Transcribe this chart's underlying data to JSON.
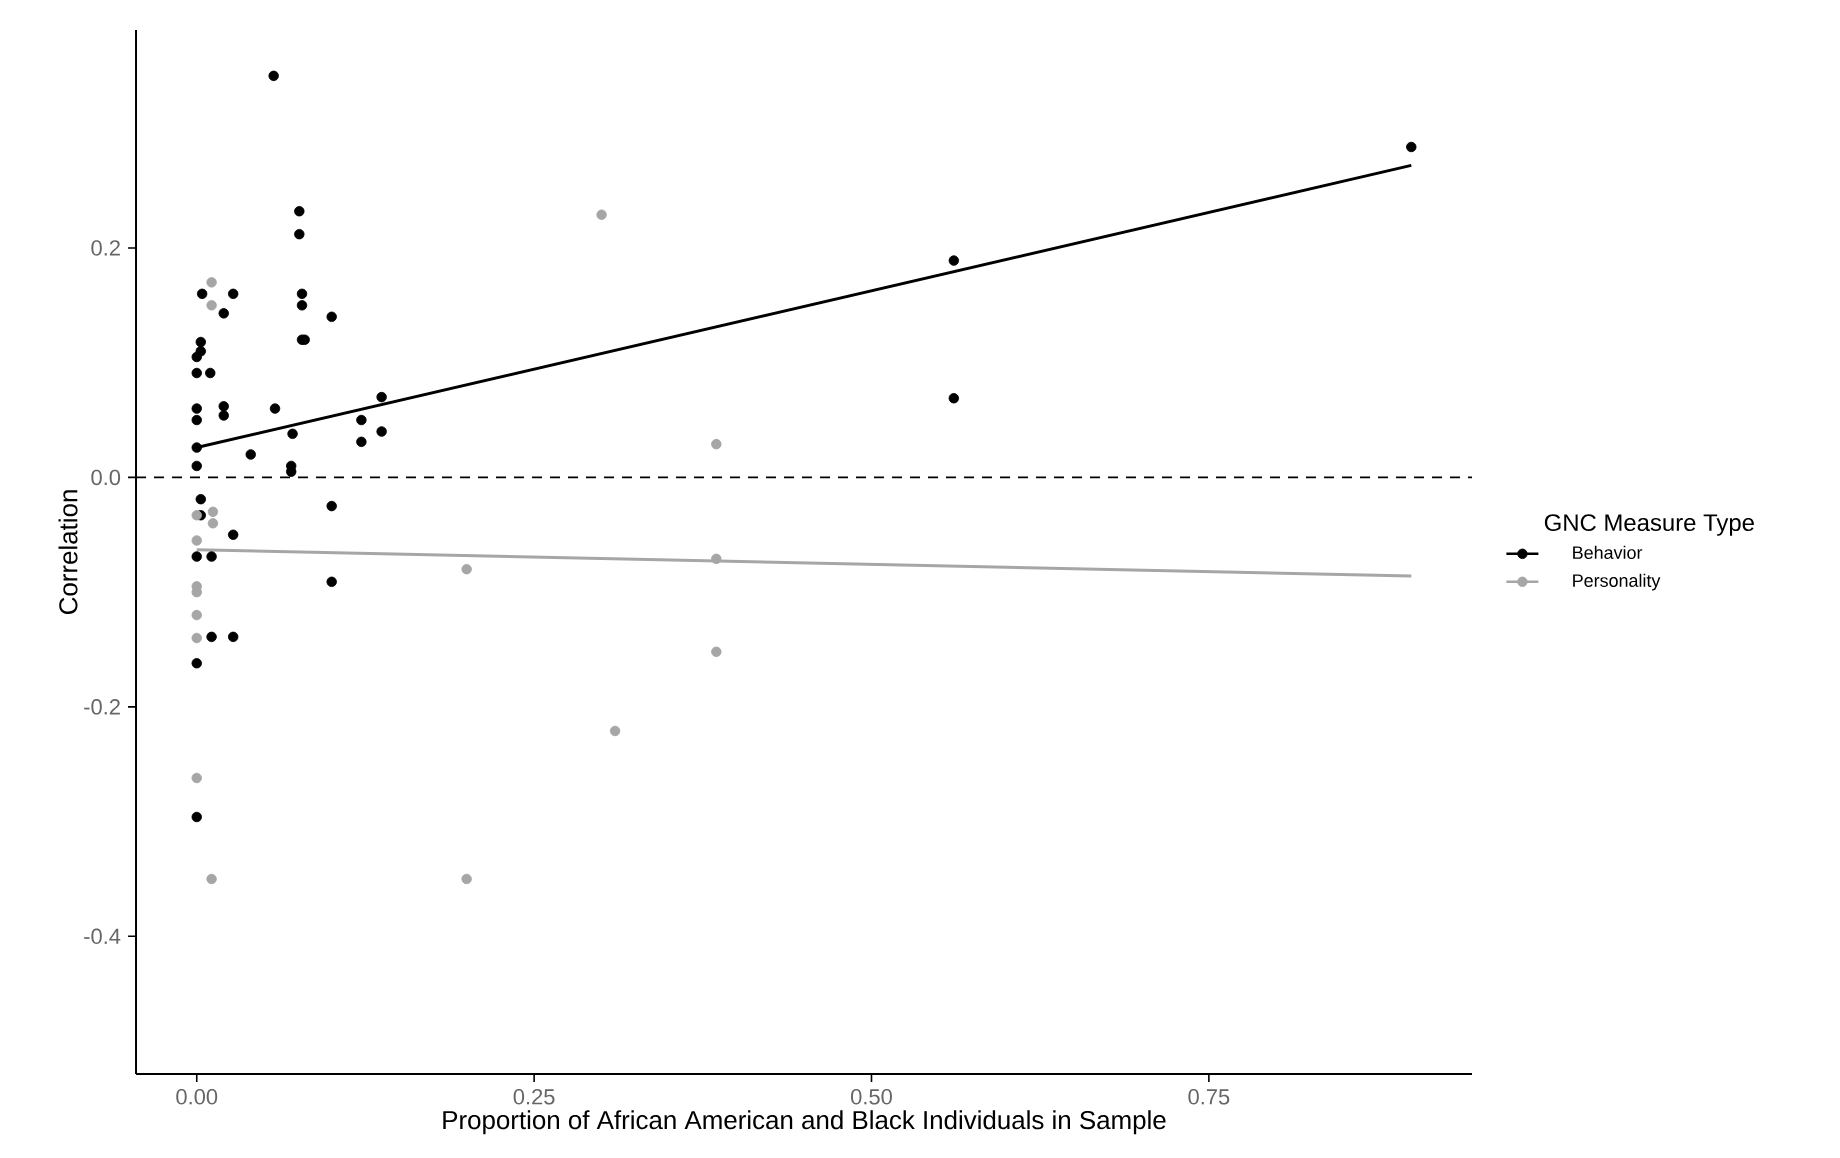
{
  "chart_data": {
    "type": "scatter",
    "xlabel": "Proportion of African American and Black Individuals in Sample",
    "ylabel": "Correlation",
    "legend_title": "GNC Measure Type",
    "legend": "right",
    "grid": false,
    "xlim": [
      -0.045,
      0.945
    ],
    "ylim": [
      -0.52,
      0.39
    ],
    "xticks": [
      {
        "value": 0,
        "label": "0.00"
      },
      {
        "value": 0.25,
        "label": "0.25"
      },
      {
        "value": 0.5,
        "label": "0.50"
      },
      {
        "value": 0.75,
        "label": "0.75"
      }
    ],
    "yticks": [
      {
        "value": -0.4,
        "label": "-0.4"
      },
      {
        "value": -0.2,
        "label": "-0.2"
      },
      {
        "value": 0,
        "label": "0.0"
      },
      {
        "value": 0.2,
        "label": "0.2"
      }
    ],
    "ref_lines": [
      {
        "axis": "y",
        "value": 0,
        "color": "#000000",
        "line_style": "dashed"
      }
    ],
    "series": [
      {
        "name": "Behavior",
        "marker": "circle",
        "color": "#000000",
        "x": [
          0.057,
          0.076,
          0.076,
          0.078,
          0.078,
          0.078,
          0.08,
          0.1,
          0.004,
          0.027,
          0.02,
          0.003,
          0.003,
          0.0,
          0.0,
          0.01,
          0.0,
          0.0,
          0.02,
          0.02,
          0.058,
          0.0,
          0.0,
          0.04,
          0.071,
          0.07,
          0.07,
          0.122,
          0.122,
          0.137,
          0.137,
          0.1,
          0.003,
          0.003,
          0.027,
          0.0,
          0.011,
          0.1,
          0.011,
          0.027,
          0.0,
          0.0,
          0.561,
          0.561,
          0.9
        ],
        "values": [
          0.35,
          0.232,
          0.212,
          0.16,
          0.15,
          0.12,
          0.12,
          0.14,
          0.16,
          0.16,
          0.143,
          0.118,
          0.11,
          0.105,
          0.091,
          0.091,
          0.06,
          0.05,
          0.062,
          0.054,
          0.06,
          0.026,
          0.01,
          0.02,
          0.038,
          0.01,
          0.005,
          0.05,
          0.031,
          0.07,
          0.04,
          -0.025,
          -0.019,
          -0.033,
          -0.05,
          -0.069,
          -0.069,
          -0.091,
          -0.139,
          -0.139,
          -0.162,
          -0.296,
          0.189,
          0.069,
          0.288
        ]
      },
      {
        "name": "Personality",
        "marker": "circle",
        "color": "#a6a6a6",
        "x": [
          0.011,
          0.011,
          0,
          0.012,
          0.012,
          0,
          0,
          0,
          0,
          0,
          0,
          0.011,
          0.2,
          0.2,
          0.3,
          0.385,
          0.385,
          0.385,
          0.31
        ],
        "values": [
          0.17,
          0.15,
          -0.033,
          -0.03,
          -0.04,
          -0.055,
          -0.095,
          -0.1,
          -0.12,
          -0.14,
          -0.262,
          -0.35,
          -0.08,
          -0.35,
          0.229,
          0.029,
          -0.071,
          -0.152,
          -0.221
        ]
      },
      {
        "type": "line",
        "marker": "none",
        "color": "#000000",
        "x": [
          0,
          0.9
        ],
        "values": [
          0.026,
          0.272
        ]
      },
      {
        "type": "line",
        "marker": "none",
        "color": "#a6a6a6",
        "x": [
          0,
          0.9
        ],
        "values": [
          -0.063,
          -0.086
        ]
      }
    ]
  }
}
